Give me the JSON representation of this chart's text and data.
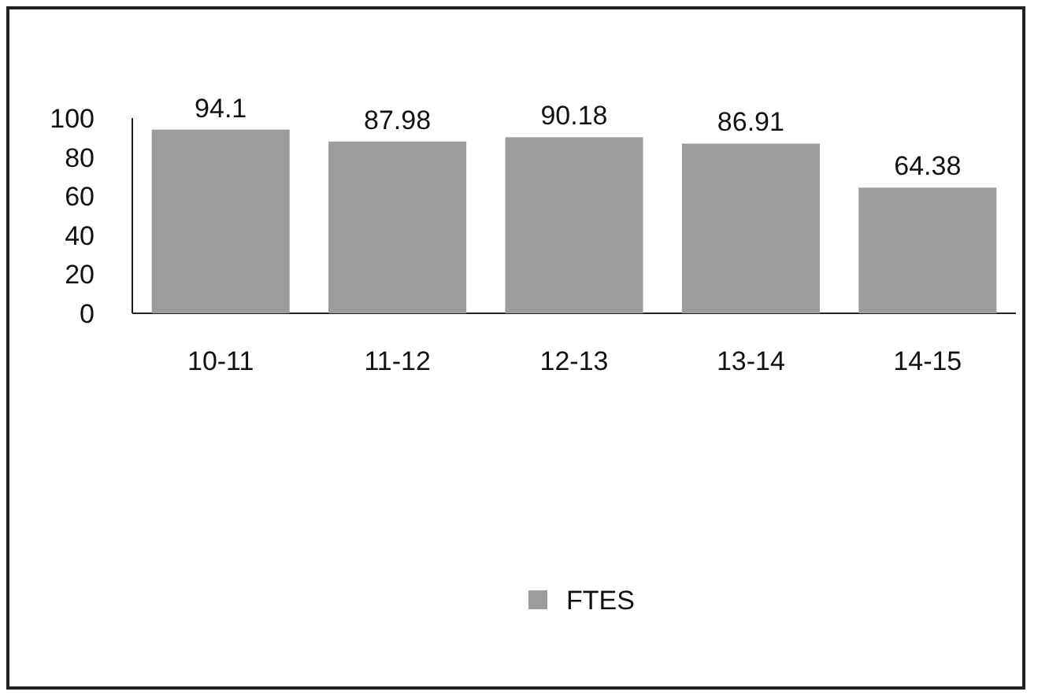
{
  "chart_data": {
    "type": "bar",
    "categories": [
      "10-11",
      "11-12",
      "12-13",
      "13-14",
      "14-15"
    ],
    "series": [
      {
        "name": "FTES",
        "color": "#9c9c9c",
        "values": [
          94.1,
          87.98,
          90.18,
          86.91,
          64.38
        ]
      }
    ],
    "ylim": [
      0,
      100
    ],
    "yticks": [
      0,
      20,
      40,
      60,
      80,
      100
    ],
    "data_labels": true,
    "legend": "bottom"
  }
}
